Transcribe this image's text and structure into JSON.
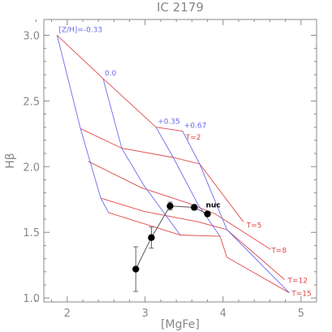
{
  "chart_data": {
    "type": "line",
    "title": "IC 2179",
    "xlabel": "[MgFe]",
    "ylabel": "Hβ",
    "xlim": [
      1.7,
      5.2
    ],
    "ylim": [
      0.97,
      3.12
    ],
    "xticks": [
      2,
      3,
      4,
      5
    ],
    "yticks": [
      1.0,
      1.5,
      2.0,
      2.5,
      3.0
    ],
    "xtick_labels": [
      "2",
      "3",
      "4",
      "5"
    ],
    "ytick_labels": [
      "1.0",
      "1.5",
      "2.0",
      "2.5",
      "3.0"
    ],
    "grid": false,
    "colors": {
      "metallicity": "#6a6aee",
      "age": "#e04848",
      "data": "#000000",
      "axis": "#888888"
    },
    "metallicity_lines": [
      {
        "label": "[Z/H]=-0.33",
        "points": [
          [
            1.87,
            3.0
          ],
          [
            2.17,
            2.29
          ],
          [
            2.43,
            1.76
          ],
          [
            2.53,
            1.65
          ]
        ]
      },
      {
        "label": "0.0",
        "points": [
          [
            2.46,
            2.67
          ],
          [
            2.7,
            2.14
          ],
          [
            2.98,
            1.86
          ],
          [
            3.45,
            1.48
          ]
        ]
      },
      {
        "label": "+0.35",
        "points": [
          [
            3.14,
            2.3
          ],
          [
            3.36,
            2.07
          ],
          [
            3.68,
            1.71
          ],
          [
            3.96,
            1.47
          ]
        ]
      },
      {
        "label": "+0.67",
        "points": [
          [
            3.48,
            2.27
          ],
          [
            3.7,
            2.02
          ],
          [
            4.05,
            1.52
          ],
          [
            4.85,
            1.04
          ]
        ]
      }
    ],
    "age_lines": [
      {
        "label": "T=2",
        "points": [
          [
            1.87,
            3.0
          ],
          [
            2.46,
            2.67
          ],
          [
            3.14,
            2.3
          ],
          [
            3.48,
            2.27
          ]
        ]
      },
      {
        "label": "T=5",
        "points": [
          [
            2.17,
            2.29
          ],
          [
            2.7,
            2.14
          ],
          [
            3.36,
            2.07
          ],
          [
            3.7,
            2.02
          ],
          [
            4.26,
            1.58
          ]
        ]
      },
      {
        "label": "T=8",
        "points": [
          [
            2.27,
            2.04
          ],
          [
            2.95,
            1.84
          ],
          [
            3.56,
            1.72
          ],
          [
            3.9,
            1.64
          ],
          [
            4.61,
            1.37
          ]
        ]
      },
      {
        "label": "T=12",
        "points": [
          [
            2.43,
            1.76
          ],
          [
            2.98,
            1.66
          ],
          [
            3.68,
            1.58
          ],
          [
            4.05,
            1.52
          ],
          [
            4.79,
            1.14
          ]
        ]
      },
      {
        "label": "T=15",
        "points": [
          [
            2.53,
            1.65
          ],
          [
            3.45,
            1.48
          ],
          [
            3.96,
            1.47
          ],
          [
            4.05,
            1.31
          ],
          [
            4.85,
            1.04
          ]
        ]
      }
    ],
    "age_label_points": [
      [
        3.52,
        2.23
      ],
      [
        4.3,
        1.56
      ],
      [
        4.62,
        1.37
      ],
      [
        4.83,
        1.14
      ],
      [
        4.88,
        1.04
      ]
    ],
    "observations": [
      {
        "x": 2.88,
        "y": 1.22,
        "err": 0.17,
        "label": ""
      },
      {
        "x": 3.08,
        "y": 1.46,
        "err": 0.08,
        "label": ""
      },
      {
        "x": 3.32,
        "y": 1.7,
        "err": 0.03,
        "label": ""
      },
      {
        "x": 3.63,
        "y": 1.69,
        "err": 0.02,
        "label": ""
      },
      {
        "x": 3.8,
        "y": 1.64,
        "err": 0.0,
        "label": "nuc"
      }
    ]
  }
}
